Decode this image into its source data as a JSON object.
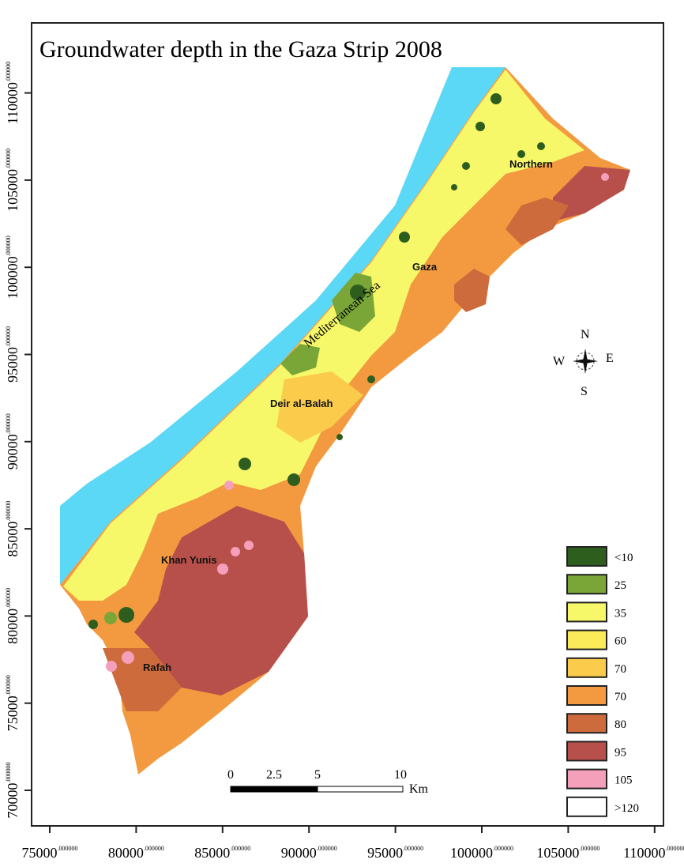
{
  "title": "Groundwater depth in the Gaza Strip 2008",
  "sea_label": "Mediterranean Sea",
  "places": [
    {
      "name": "Northern"
    },
    {
      "name": "Gaza"
    },
    {
      "name": "Deir al-Balah"
    },
    {
      "name": "Khan Yunis"
    },
    {
      "name": "Rafah"
    }
  ],
  "compass": {
    "n": "N",
    "s": "S",
    "e": "E",
    "w": "W"
  },
  "scale_bar": {
    "labels": [
      "0",
      "2.5",
      "5",
      "10"
    ],
    "unit": "Km"
  },
  "x_axis": {
    "ticks": [
      "75000",
      "80000",
      "85000",
      "90000",
      "95000",
      "100000",
      "105000",
      "110000"
    ],
    "suffix": ".000000"
  },
  "y_axis": {
    "ticks": [
      "70000",
      "75000",
      "80000",
      "85000",
      "90000",
      "95000",
      "100000",
      "105000",
      "110000"
    ],
    "suffix": ".000000"
  },
  "legend": [
    {
      "label": "<10",
      "color": "#2e5e1e"
    },
    {
      "label": "25",
      "color": "#7aa637"
    },
    {
      "label": "35",
      "color": "#f7f76a"
    },
    {
      "label": "60",
      "color": "#fbeb5a"
    },
    {
      "label": "70",
      "color": "#fbcb4b"
    },
    {
      "label": "70",
      "color": "#f39a40"
    },
    {
      "label": "80",
      "color": "#cd6b3c"
    },
    {
      "label": "95",
      "color": "#b7504a"
    },
    {
      "label": "105",
      "color": "#f5a0bb"
    },
    {
      "label": ">120",
      "color": "#ffffff"
    }
  ],
  "colors": {
    "sea": "#5ad8f5"
  }
}
